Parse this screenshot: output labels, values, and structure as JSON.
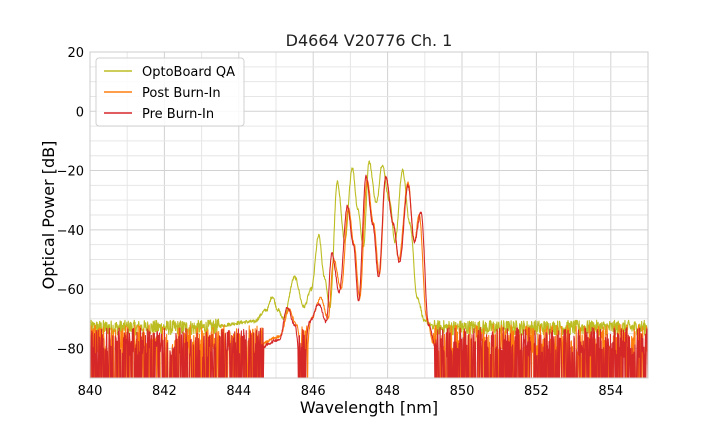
{
  "chart_data": {
    "type": "line",
    "title": "D4664 V20776 Ch. 1",
    "xlabel": "Wavelength [nm]",
    "ylabel": "Optical Power [dB]",
    "xlim": [
      840,
      855
    ],
    "ylim": [
      -90,
      20
    ],
    "xticks": [
      840,
      842,
      844,
      846,
      848,
      850,
      852,
      854
    ],
    "yticks": [
      -80,
      -60,
      -40,
      -20,
      0,
      20
    ],
    "grid": true,
    "legend_position": "top-left",
    "series": [
      {
        "name": "OptoBoard QA",
        "color": "#bcbd22",
        "noise_floor": -73,
        "points": [
          [
            840.0,
            -73
          ],
          [
            843.0,
            -73
          ],
          [
            844.4,
            -71
          ],
          [
            844.75,
            -67
          ],
          [
            844.9,
            -62.5
          ],
          [
            845.05,
            -67
          ],
          [
            845.2,
            -70
          ],
          [
            845.5,
            -56
          ],
          [
            845.75,
            -66
          ],
          [
            845.95,
            -60
          ],
          [
            846.15,
            -42
          ],
          [
            846.3,
            -56
          ],
          [
            846.45,
            -66
          ],
          [
            846.65,
            -24
          ],
          [
            846.85,
            -44
          ],
          [
            847.05,
            -19
          ],
          [
            847.2,
            -33
          ],
          [
            847.35,
            -46
          ],
          [
            847.5,
            -17
          ],
          [
            847.7,
            -31
          ],
          [
            847.85,
            -18
          ],
          [
            848.05,
            -30
          ],
          [
            848.2,
            -44
          ],
          [
            848.4,
            -20
          ],
          [
            848.6,
            -38
          ],
          [
            848.8,
            -63
          ],
          [
            849.0,
            -71
          ],
          [
            849.3,
            -73
          ],
          [
            855.0,
            -73
          ]
        ]
      },
      {
        "name": "Post Burn-In",
        "color": "#ff7f0e",
        "noise_floor": -79,
        "points": [
          [
            840.0,
            -79
          ],
          [
            844.5,
            -79
          ],
          [
            845.1,
            -76
          ],
          [
            845.35,
            -67
          ],
          [
            845.55,
            -72
          ],
          [
            845.75,
            -90
          ],
          [
            845.95,
            -70
          ],
          [
            846.2,
            -63
          ],
          [
            846.4,
            -70
          ],
          [
            846.55,
            -50
          ],
          [
            846.75,
            -60
          ],
          [
            846.95,
            -33
          ],
          [
            847.1,
            -45
          ],
          [
            847.25,
            -63
          ],
          [
            847.45,
            -23
          ],
          [
            847.62,
            -38
          ],
          [
            847.78,
            -55
          ],
          [
            847.95,
            -22
          ],
          [
            848.15,
            -38
          ],
          [
            848.3,
            -50
          ],
          [
            848.55,
            -24
          ],
          [
            848.72,
            -44
          ],
          [
            848.85,
            -35
          ],
          [
            849.05,
            -70
          ],
          [
            849.25,
            -79
          ],
          [
            855.0,
            -79
          ]
        ]
      },
      {
        "name": "Pre Burn-In",
        "color": "#d62728",
        "noise_floor": -80,
        "points": [
          [
            840.0,
            -80
          ],
          [
            844.5,
            -80
          ],
          [
            845.1,
            -77
          ],
          [
            845.3,
            -66
          ],
          [
            845.5,
            -72
          ],
          [
            845.7,
            -90
          ],
          [
            845.9,
            -71
          ],
          [
            846.15,
            -65
          ],
          [
            846.35,
            -71
          ],
          [
            846.5,
            -48
          ],
          [
            846.7,
            -61
          ],
          [
            846.92,
            -32
          ],
          [
            847.08,
            -45
          ],
          [
            847.22,
            -64
          ],
          [
            847.42,
            -22
          ],
          [
            847.6,
            -38
          ],
          [
            847.76,
            -56
          ],
          [
            847.95,
            -22
          ],
          [
            848.15,
            -38
          ],
          [
            848.32,
            -51
          ],
          [
            848.55,
            -25
          ],
          [
            848.72,
            -44
          ],
          [
            848.9,
            -34
          ],
          [
            849.1,
            -72
          ],
          [
            849.3,
            -80
          ],
          [
            855.0,
            -80
          ]
        ]
      }
    ]
  }
}
